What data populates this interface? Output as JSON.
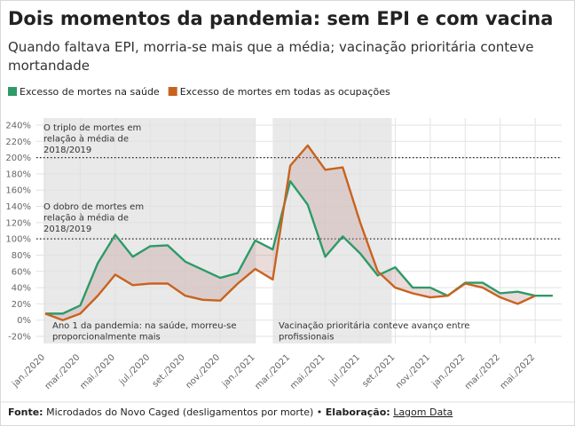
{
  "chart_data": {
    "type": "line",
    "title": "Dois momentos da pandemia: sem EPI e com vacina",
    "subtitle": "Quando faltava EPI, morria-se mais que a média; vacinação prioritária conteve mortandade",
    "categories": [
      "jan./2020",
      null,
      "mar./2020",
      null,
      "mai./2020",
      null,
      "jul./2020",
      null,
      "set./2020",
      null,
      "nov./2020",
      null,
      "jan./2021",
      null,
      "mar./2021",
      null,
      "mai./2021",
      null,
      "jul./2021",
      null,
      "set./2021",
      null,
      "nov./2021",
      null,
      "jan./2022",
      null,
      "mar./2022",
      null,
      "mai./2022",
      null
    ],
    "series": [
      {
        "name": "Excesso de mortes na saúde",
        "color": "#2e9a68",
        "values": [
          8,
          8,
          18,
          70,
          105,
          78,
          91,
          92,
          72,
          62,
          52,
          58,
          98,
          87,
          171,
          142,
          78,
          103,
          82,
          55,
          65,
          40,
          40,
          30,
          46,
          46,
          33,
          35,
          30,
          30
        ]
      },
      {
        "name": "Excesso de mortes em todas as ocupações",
        "color": "#c8631f",
        "values": [
          8,
          0,
          8,
          30,
          56,
          43,
          45,
          45,
          30,
          25,
          24,
          45,
          63,
          50,
          190,
          215,
          185,
          188,
          120,
          60,
          40,
          33,
          28,
          30,
          45,
          40,
          28,
          20,
          30,
          null
        ]
      }
    ],
    "ylim": [
      -20,
      240
    ],
    "yticks": [
      {
        "value": -20,
        "label": "-20%"
      },
      {
        "value": 0,
        "label": "0%"
      },
      {
        "value": 20,
        "label": "20%"
      },
      {
        "value": 40,
        "label": "40%"
      },
      {
        "value": 60,
        "label": "60%"
      },
      {
        "value": 80,
        "label": "80%"
      },
      {
        "value": 100,
        "label": "100%"
      },
      {
        "value": 120,
        "label": "120%"
      },
      {
        "value": 140,
        "label": "140%"
      },
      {
        "value": 160,
        "label": "160%"
      },
      {
        "value": 180,
        "label": "180%"
      },
      {
        "value": 200,
        "label": "200%"
      },
      {
        "value": 220,
        "label": "220%"
      },
      {
        "value": 240,
        "label": "240%"
      }
    ],
    "grid": true,
    "reference_lines": [
      200,
      100
    ],
    "annotations": [
      [
        "O triplo de mortes em",
        "relação à média de",
        "2018/2019"
      ],
      [
        "O dobro de mortes em",
        "relação à média de",
        "2018/2019"
      ],
      [
        "Ano 1 da pandemia: na saúde, morreu-se",
        "proporcionalmente mais"
      ],
      [
        "Vacinação prioritária conteve avanço entre",
        "profissionais"
      ]
    ],
    "source_label": "Fonte:",
    "source": "Microdados do Novo Caged (desligamentos por morte) •",
    "credit_label": "Elaboração:",
    "credit": "Lagom Data"
  }
}
